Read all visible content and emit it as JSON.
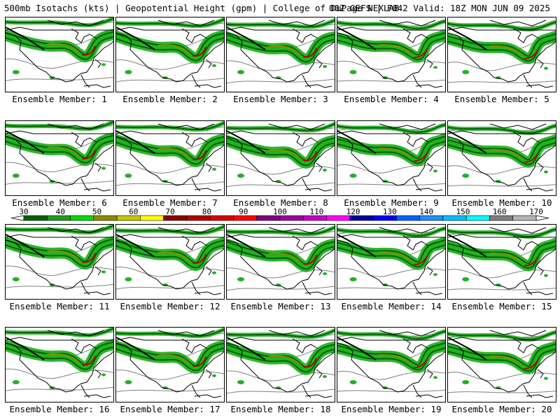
{
  "header": {
    "title_left": "500mb Isotachs (kts) | Geopotential Height (gpm) | College of DuPage NEXLAB",
    "title_right": "00Z GEFS | F042 Valid: 18Z MON JUN 09 2025"
  },
  "panels": [
    {
      "label": "Ensemble Member: 1"
    },
    {
      "label": "Ensemble Member: 2"
    },
    {
      "label": "Ensemble Member: 3"
    },
    {
      "label": "Ensemble Member: 4"
    },
    {
      "label": "Ensemble Member: 5"
    },
    {
      "label": "Ensemble Member: 6"
    },
    {
      "label": "Ensemble Member: 7"
    },
    {
      "label": "Ensemble Member: 8"
    },
    {
      "label": "Ensemble Member: 9"
    },
    {
      "label": "Ensemble Member: 10"
    },
    {
      "label": "Ensemble Member: 11"
    },
    {
      "label": "Ensemble Member: 12"
    },
    {
      "label": "Ensemble Member: 13"
    },
    {
      "label": "Ensemble Member: 14"
    },
    {
      "label": "Ensemble Member: 15"
    },
    {
      "label": "Ensemble Member: 16"
    },
    {
      "label": "Ensemble Member: 17"
    },
    {
      "label": "Ensemble Member: 18"
    },
    {
      "label": "Ensemble Member: 19"
    },
    {
      "label": "Ensemble Member: 20"
    }
  ],
  "colorbar": {
    "ticks": [
      "30",
      "40",
      "50",
      "60",
      "70",
      "80",
      "90",
      "100",
      "110",
      "120",
      "130",
      "140",
      "150",
      "160",
      "170"
    ],
    "colors": [
      "#006400",
      "#1e9b1e",
      "#00dc00",
      "#8b8b00",
      "#c8c800",
      "#ffff00",
      "#8b0000",
      "#b40000",
      "#dc0000",
      "#ff0000",
      "#800080",
      "#a000a0",
      "#c800c8",
      "#ff00ff",
      "#0000a0",
      "#0000ff",
      "#0064ff",
      "#1e90ff",
      "#00bfff",
      "#00ffff",
      "#808080",
      "#b4b4b4"
    ]
  },
  "colors": {
    "isotach_light": "#23b123",
    "isotach_dark": "#006400",
    "isotach_core": "#8b8b00",
    "jet_max": "#b40000",
    "height_contour": "#808080",
    "coastline": "#000000"
  }
}
